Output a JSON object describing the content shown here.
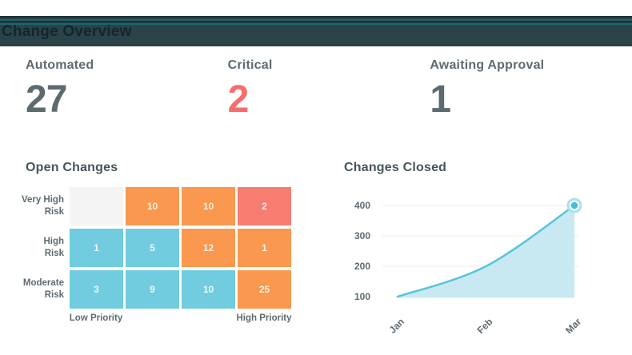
{
  "header": {
    "title": "Change Overview",
    "bar_color": "#2c4249",
    "accent_teal": "#17696c",
    "title_color": "#14262c"
  },
  "stats": [
    {
      "label": "Automated",
      "value": "27",
      "value_color": "#5d6b71"
    },
    {
      "label": "Critical",
      "value": "2",
      "value_color": "#f76c6c"
    },
    {
      "label": "Awaiting Approval",
      "value": "1",
      "value_color": "#5d6b71"
    }
  ],
  "chart_data": [
    {
      "type": "heatmap",
      "title": "Open Changes",
      "rows": [
        "Very High Risk",
        "High Risk",
        "Moderate Risk"
      ],
      "row_label_lines": [
        [
          "Very High",
          "Risk"
        ],
        [
          "High",
          "Risk"
        ],
        [
          "Moderate",
          "Risk"
        ]
      ],
      "x_axis_labels": {
        "left": "Low Priority",
        "right": "High Priority"
      },
      "values": [
        [
          null,
          10,
          10,
          2
        ],
        [
          1,
          5,
          12,
          1
        ],
        [
          3,
          9,
          10,
          25
        ]
      ],
      "cell_colors": [
        [
          "#f5f4f4",
          "#f9984e",
          "#f9984e",
          "#f87d71"
        ],
        [
          "#70ccde",
          "#70ccde",
          "#f9984e",
          "#f9984e"
        ],
        [
          "#70ccde",
          "#70ccde",
          "#70ccde",
          "#f9984e"
        ]
      ],
      "color_meaning": {
        "#f5f4f4": "none",
        "#70ccde": "low",
        "#f9984e": "medium",
        "#f87d71": "high"
      },
      "legend": "none"
    },
    {
      "type": "area",
      "title": "Changes Closed",
      "x": [
        "Jan",
        "Feb",
        "Mar"
      ],
      "values": [
        100,
        200,
        400
      ],
      "yticks": [
        100,
        200,
        300,
        400
      ],
      "ylim": [
        100,
        400
      ],
      "grid": true,
      "grid_color": "#ececec",
      "line_color": "#57c5db",
      "fill_color": "#c8e9f1",
      "marker_color": "#45bed8",
      "marker_halo_color": "#aee0ec",
      "marker_point": {
        "x": "Mar",
        "value": 400
      },
      "legend": "none"
    }
  ]
}
